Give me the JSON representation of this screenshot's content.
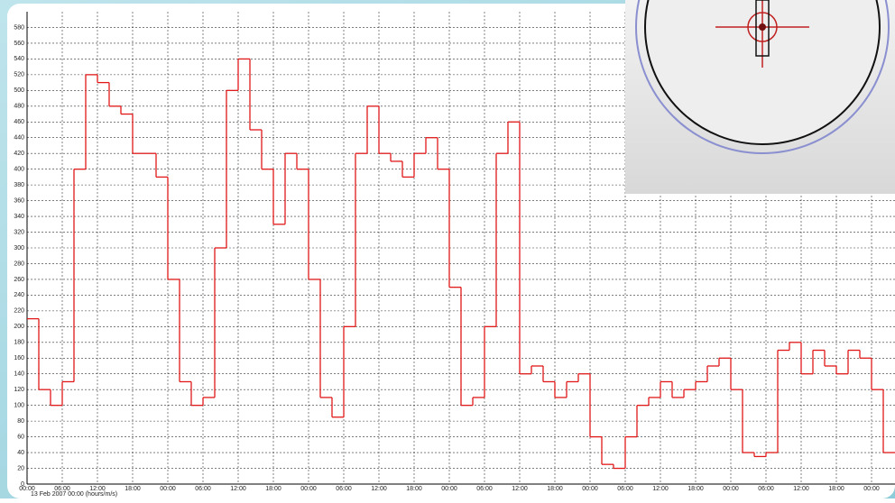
{
  "chart_data": {
    "type": "step",
    "x_label": "13 Feb 2007 00:00 (hours/m/s)",
    "x": [
      0,
      2,
      4,
      6,
      8,
      10,
      12,
      14,
      16,
      18,
      20,
      22,
      24,
      26,
      28,
      30,
      32,
      34,
      36,
      38,
      40,
      42,
      44,
      46,
      48,
      50,
      52,
      54,
      56,
      58,
      60,
      62,
      64,
      66,
      68,
      70,
      72,
      74,
      76,
      78,
      80,
      82,
      84,
      86,
      88,
      90,
      92,
      94,
      96,
      98,
      100,
      102,
      104,
      106,
      108,
      110,
      112,
      114,
      116,
      118,
      120,
      122,
      124,
      126,
      128,
      130,
      132,
      134,
      136,
      138,
      140,
      142,
      144,
      146
    ],
    "series": [
      {
        "color": "#e01818",
        "values": [
          210,
          120,
          100,
          130,
          400,
          520,
          510,
          480,
          470,
          420,
          420,
          390,
          260,
          130,
          100,
          110,
          300,
          500,
          540,
          450,
          400,
          330,
          420,
          400,
          260,
          110,
          85,
          200,
          420,
          480,
          420,
          410,
          390,
          420,
          440,
          400,
          250,
          100,
          110,
          200,
          420,
          460,
          140,
          150,
          130,
          110,
          130,
          140,
          60,
          25,
          20,
          60,
          100,
          110,
          130,
          110,
          120,
          130,
          150,
          160,
          120,
          40,
          35,
          40,
          170,
          180,
          140,
          170,
          150,
          140,
          170,
          160,
          120,
          40
        ]
      }
    ],
    "xlim": [
      0,
      148
    ],
    "ylim": [
      0,
      600
    ],
    "xticks": [
      {
        "value": 0,
        "label": "00:00"
      },
      {
        "value": 6,
        "label": "06:00"
      },
      {
        "value": 12,
        "label": "12:00"
      },
      {
        "value": 18,
        "label": "18:00"
      },
      {
        "value": 24,
        "label": "00:00"
      },
      {
        "value": 30,
        "label": "06:00"
      },
      {
        "value": 36,
        "label": "12:00"
      },
      {
        "value": 42,
        "label": "18:00"
      },
      {
        "value": 48,
        "label": "00:00"
      },
      {
        "value": 54,
        "label": "06:00"
      },
      {
        "value": 60,
        "label": "12:00"
      },
      {
        "value": 66,
        "label": "18:00"
      },
      {
        "value": 72,
        "label": "00:00"
      },
      {
        "value": 78,
        "label": "06:00"
      },
      {
        "value": 84,
        "label": "12:00"
      },
      {
        "value": 90,
        "label": "18:00"
      },
      {
        "value": 96,
        "label": "00:00"
      },
      {
        "value": 102,
        "label": "06:00"
      },
      {
        "value": 108,
        "label": "12:00"
      },
      {
        "value": 114,
        "label": "18:00"
      },
      {
        "value": 120,
        "label": "00:00"
      },
      {
        "value": 126,
        "label": "06:00"
      },
      {
        "value": 132,
        "label": "12:00"
      },
      {
        "value": 138,
        "label": "18:00"
      },
      {
        "value": 144,
        "label": "00:00"
      }
    ],
    "yticks": [
      0,
      20,
      40,
      60,
      80,
      100,
      120,
      140,
      160,
      180,
      200,
      220,
      240,
      260,
      280,
      300,
      320,
      340,
      360,
      380,
      400,
      420,
      440,
      460,
      480,
      500,
      520,
      540,
      560,
      580
    ],
    "grid": true
  }
}
